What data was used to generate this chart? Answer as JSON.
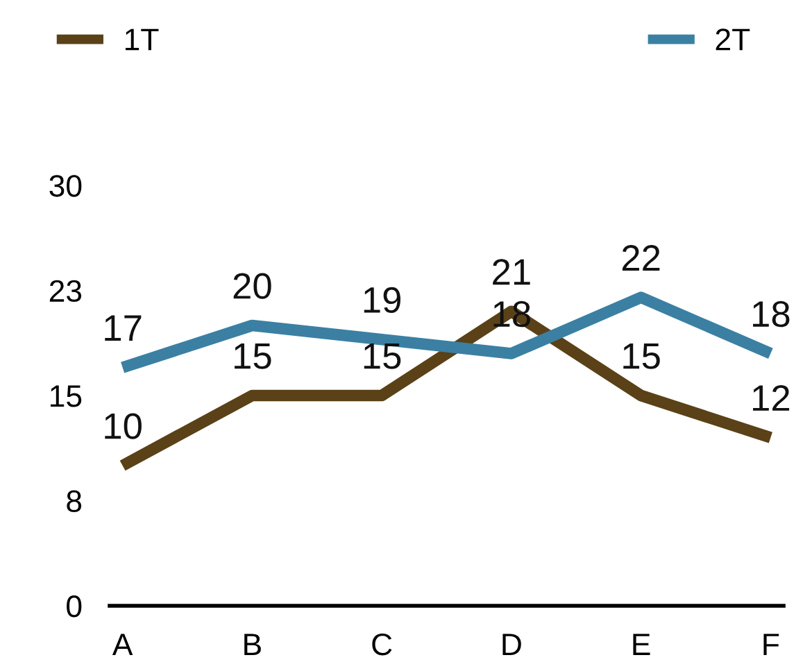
{
  "chart_data": {
    "type": "line",
    "categories": [
      "A",
      "B",
      "C",
      "D",
      "E",
      "F"
    ],
    "series": [
      {
        "name": "1T",
        "color": "#5a4117",
        "values": [
          10,
          15,
          15,
          21,
          15,
          12
        ]
      },
      {
        "name": "2T",
        "color": "#3b80a3",
        "values": [
          17,
          20,
          19,
          18,
          22,
          18
        ]
      }
    ],
    "ylim": [
      0,
      30
    ],
    "yticks": [
      0,
      {
        "value": 7.5,
        "label": "8"
      },
      15,
      {
        "value": 22.5,
        "label": "23"
      },
      30
    ],
    "data_labels": true,
    "legend": "top",
    "grid": false,
    "marker": "none",
    "line_style": "solid"
  }
}
